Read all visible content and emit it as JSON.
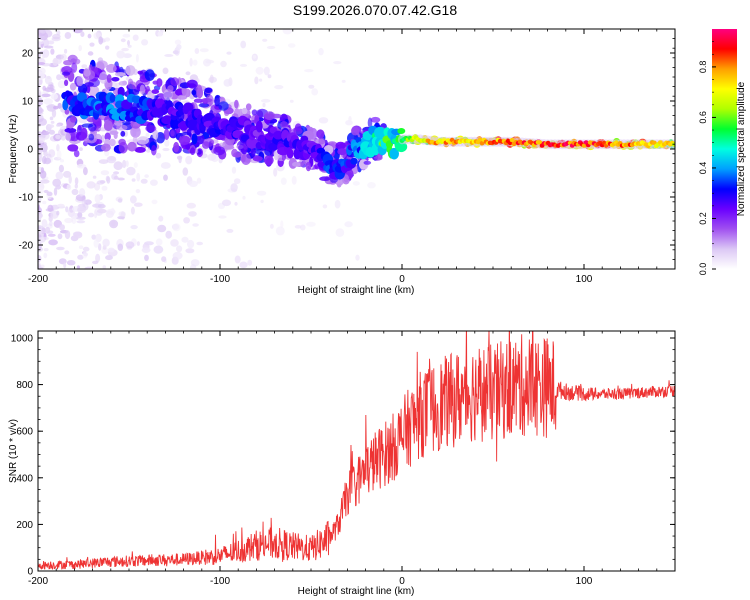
{
  "title": "S199.2026.070.07.42.G18",
  "colors": {
    "snr_line": "#ee3333",
    "axis": "#000000"
  },
  "chart_data": [
    {
      "type": "heatmap",
      "name": "spectrogram",
      "xlabel": "Height of straight line (km)",
      "ylabel": "Frequency (Hz)",
      "xlim": [
        -200,
        150
      ],
      "ylim": [
        -25,
        25
      ],
      "xticks": [
        -200,
        -100,
        0,
        100
      ],
      "yticks": [
        -20,
        -10,
        0,
        10,
        20
      ],
      "colorbar": {
        "label": "Normalized spectral amplitude",
        "range": [
          0.0,
          0.95
        ],
        "ticks": [
          "0.0",
          "0.2",
          "0.4",
          "0.6",
          "0.8"
        ],
        "colormap": [
          "#ffffff",
          "#dcc8f5",
          "#a050f0",
          "#6a00ff",
          "#0000ff",
          "#00a0ff",
          "#00ffe0",
          "#00ff30",
          "#b0ff00",
          "#ffff00",
          "#ffa000",
          "#ff0000",
          "#ff0080"
        ]
      },
      "ridge": {
        "description": "dominant frequency vs height",
        "x": [
          -180,
          -160,
          -140,
          -120,
          -100,
          -90,
          -80,
          -70,
          -60,
          -50,
          -45,
          -40,
          -35,
          -30,
          -25,
          -20,
          -15,
          -10,
          -5,
          0,
          10,
          20,
          40,
          60,
          80,
          100,
          120,
          150
        ],
        "y": [
          9,
          9,
          8,
          7,
          5,
          4,
          3,
          2,
          1,
          0,
          -1,
          -3,
          -4,
          -2,
          0,
          1,
          2,
          2,
          1,
          2,
          2,
          1.5,
          1.5,
          1.5,
          1,
          1,
          1,
          1
        ],
        "amplitude": [
          0.35,
          0.4,
          0.35,
          0.3,
          0.3,
          0.3,
          0.25,
          0.3,
          0.3,
          0.3,
          0.3,
          0.35,
          0.35,
          0.35,
          0.4,
          0.45,
          0.5,
          0.6,
          0.55,
          0.55,
          0.75,
          0.8,
          0.8,
          0.85,
          0.9,
          0.9,
          0.85,
          0.75
        ]
      }
    },
    {
      "type": "line",
      "name": "snr",
      "xlabel": "Height of straight line (km)",
      "ylabel": "SNR (10 * v/v)",
      "xlim": [
        -200,
        150
      ],
      "ylim": [
        0,
        1030
      ],
      "xticks": [
        -200,
        -100,
        0,
        100
      ],
      "yticks": [
        0,
        200,
        400,
        600,
        800,
        1000
      ],
      "series": [
        {
          "name": "SNR",
          "x": [
            -200,
            -180,
            -160,
            -140,
            -120,
            -100,
            -90,
            -80,
            -70,
            -60,
            -50,
            -40,
            -35,
            -30,
            -25,
            -20,
            -15,
            -10,
            -5,
            0,
            10,
            20,
            30,
            40,
            50,
            60,
            70,
            80,
            90,
            100,
            120,
            150
          ],
          "values": [
            25,
            28,
            40,
            45,
            50,
            65,
            85,
            110,
            120,
            105,
            95,
            140,
            200,
            330,
            380,
            430,
            470,
            500,
            530,
            580,
            670,
            710,
            740,
            770,
            760,
            790,
            800,
            790,
            770,
            760,
            760,
            775
          ]
        }
      ]
    }
  ]
}
